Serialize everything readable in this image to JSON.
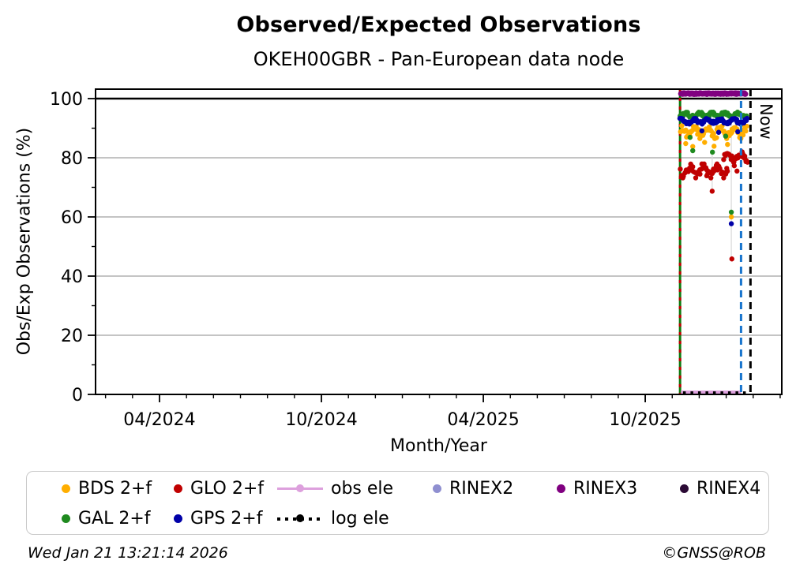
{
  "header": {
    "title": "Observed/Expected Observations",
    "subtitle": "OKEH00GBR - Pan-European data node"
  },
  "axes": {
    "ylabel": "Obs/Exp Observations (%)",
    "xlabel": "Month/Year",
    "now_label": "Now"
  },
  "chart_data": {
    "type": "scatter",
    "title": "Observed/Expected Observations",
    "subtitle": "OKEH00GBR - Pan-European data node",
    "xlabel": "Month/Year",
    "ylabel": "Obs/Exp Observations (%)",
    "x_unit": "months since 2024-01-01",
    "x_range": [
      0.63,
      26.06
    ],
    "y_range": [
      0,
      103.2
    ],
    "x_ticks": [
      {
        "t": 3,
        "label": "04/2024"
      },
      {
        "t": 9,
        "label": "10/2024"
      },
      {
        "t": 15,
        "label": "04/2025"
      },
      {
        "t": 21,
        "label": "10/2025"
      }
    ],
    "x_minor_step_months": 1,
    "y_ticks": [
      0,
      20,
      40,
      60,
      80,
      100
    ],
    "y_minor_ticks": [
      10,
      30,
      50,
      70,
      90
    ],
    "grid": true,
    "gridline_color": "#b0b0b0",
    "reference_line": {
      "y": 100,
      "color": "#000000"
    },
    "series": [
      {
        "name": "BDS 2+f",
        "color": "#FFAE00",
        "style": "scatter-band",
        "segments": [
          {
            "x": [
              22.3,
              24.8
            ],
            "y_band": [
              86.5,
              90.8
            ]
          }
        ],
        "outliers": [
          [
            22.5,
            84.8
          ],
          [
            22.76,
            83.8
          ],
          [
            23.2,
            85.2
          ],
          [
            23.55,
            83.9
          ],
          [
            24.05,
            84.5
          ],
          [
            24.19,
            60.0
          ]
        ]
      },
      {
        "name": "GLO 2+f",
        "color": "#C00000",
        "style": "scatter-band",
        "segments": [
          {
            "x": [
              22.3,
              24.05
            ],
            "y_band": [
              73.2,
              77.9
            ]
          },
          {
            "x": [
              23.9,
              24.83
            ],
            "y_band": [
              78.5,
              82.0
            ]
          }
        ],
        "outliers": [
          [
            23.48,
            68.7
          ],
          [
            24.3,
            77.3
          ],
          [
            24.4,
            75.5
          ],
          [
            24.21,
            45.8
          ]
        ]
      },
      {
        "name": "GAL 2+f",
        "color": "#1F8A1F",
        "style": "scatter-band",
        "segments": [
          {
            "x": [
              22.3,
              24.8
            ],
            "y_band": [
              93.6,
              95.4
            ]
          }
        ],
        "outliers": [
          [
            22.66,
            86.9
          ],
          [
            22.76,
            82.4
          ],
          [
            23.49,
            81.9
          ],
          [
            23.98,
            87.3
          ],
          [
            24.19,
            61.6
          ]
        ]
      },
      {
        "name": "GPS 2+f",
        "color": "#0000A8",
        "style": "scatter-band",
        "segments": [
          {
            "x": [
              22.3,
              24.8
            ],
            "y_band": [
              91.4,
              93.3
            ]
          }
        ],
        "outliers": [
          [
            23.1,
            89.1
          ],
          [
            23.72,
            88.6
          ],
          [
            24.43,
            88.8
          ],
          [
            24.19,
            57.7
          ]
        ]
      },
      {
        "name": "obs ele",
        "color": "#DDA0DD",
        "style": "thick-line",
        "x": [
          22.32,
          24.55
        ],
        "y": 0.5
      },
      {
        "name": "log ele",
        "color": "#000000",
        "style": "dotted-line",
        "x": [
          22.4,
          24.88
        ],
        "y": 0.5
      },
      {
        "name": "RINEX2",
        "color": "#8F8FD0",
        "style": "legend-only"
      },
      {
        "name": "RINEX3",
        "color": "#800080",
        "style": "dense-line-scatter",
        "x": [
          22.32,
          24.72
        ],
        "y": 101.7
      },
      {
        "name": "RINEX4",
        "color": "#2B0A35",
        "style": "legend-only"
      }
    ],
    "vlines": [
      {
        "t": 22.29,
        "color": "#0E7A0E",
        "style": "solid"
      },
      {
        "t": 22.29,
        "color": "#C00000",
        "style": "dotted"
      },
      {
        "t": 24.55,
        "color": "#1874CD",
        "style": "dashed"
      },
      {
        "t": 24.9,
        "color": "#000000",
        "style": "dashed",
        "label": "Now"
      }
    ],
    "droplines": [
      {
        "t": 23.48,
        "y": [
          68.7,
          82.0
        ]
      },
      {
        "t": 24.19,
        "y": [
          45.8,
          93.0
        ]
      }
    ]
  },
  "legend": {
    "rows": [
      [
        {
          "label": "BDS 2+f",
          "color": "#FFAE00",
          "marker": "dot"
        },
        {
          "label": "GLO 2+f",
          "color": "#C00000",
          "marker": "dot"
        },
        {
          "label": "obs ele",
          "color": "#DDA0DD",
          "marker": "line-dot"
        },
        {
          "label": "RINEX2",
          "color": "#8F8FD0",
          "marker": "dot"
        },
        {
          "label": "RINEX3",
          "color": "#800080",
          "marker": "dot"
        },
        {
          "label": "RINEX4",
          "color": "#2B0A35",
          "marker": "dot"
        }
      ],
      [
        {
          "label": "GAL 2+f",
          "color": "#1F8A1F",
          "marker": "dot"
        },
        {
          "label": "GPS 2+f",
          "color": "#0000A8",
          "marker": "dot"
        },
        {
          "label": "log ele",
          "color": "#000000",
          "marker": "dotted-line-dot"
        }
      ]
    ]
  },
  "footer": {
    "timestamp": "Wed Jan 21 13:21:14 2026",
    "credit": "©GNSS@ROB"
  }
}
